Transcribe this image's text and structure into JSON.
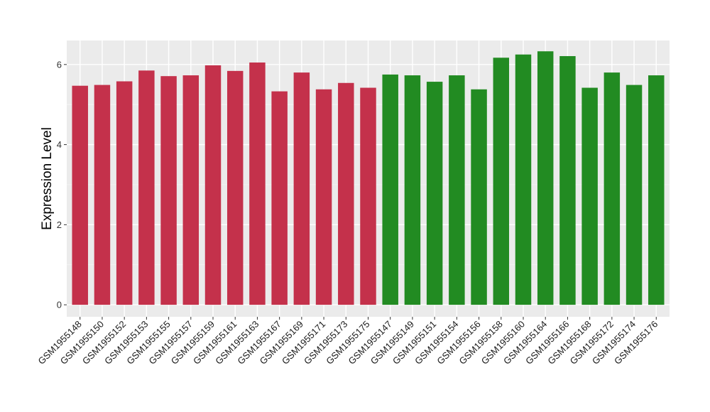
{
  "chart_data": {
    "type": "bar",
    "title": "",
    "xlabel": "",
    "ylabel": "Expression Level",
    "ylim": [
      -0.3,
      6.6
    ],
    "yticks": [
      0,
      2,
      4,
      6
    ],
    "grid": true,
    "legend": "none",
    "background": "#ebebeb",
    "group_colors": {
      "group1": "#c4314b",
      "group2": "#228b22"
    },
    "categories": [
      "GSM1955148",
      "GSM1955150",
      "GSM1955152",
      "GSM1955153",
      "GSM1955155",
      "GSM1955157",
      "GSM1955159",
      "GSM1955161",
      "GSM1955163",
      "GSM1955167",
      "GSM1955169",
      "GSM1955171",
      "GSM1955173",
      "GSM1955175",
      "GSM1955147",
      "GSM1955149",
      "GSM1955151",
      "GSM1955154",
      "GSM1955156",
      "GSM1955158",
      "GSM1955160",
      "GSM1955164",
      "GSM1955166",
      "GSM1955168",
      "GSM1955172",
      "GSM1955174",
      "GSM1955176"
    ],
    "values": [
      5.47,
      5.49,
      5.58,
      5.85,
      5.71,
      5.73,
      5.98,
      5.84,
      6.05,
      5.33,
      5.8,
      5.38,
      5.54,
      5.42,
      5.75,
      5.73,
      5.57,
      5.73,
      5.38,
      6.17,
      6.25,
      6.33,
      6.21,
      5.42,
      5.8,
      5.49,
      5.73
    ],
    "groups": [
      "group1",
      "group1",
      "group1",
      "group1",
      "group1",
      "group1",
      "group1",
      "group1",
      "group1",
      "group1",
      "group1",
      "group1",
      "group1",
      "group1",
      "group2",
      "group2",
      "group2",
      "group2",
      "group2",
      "group2",
      "group2",
      "group2",
      "group2",
      "group2",
      "group2",
      "group2",
      "group2"
    ]
  }
}
